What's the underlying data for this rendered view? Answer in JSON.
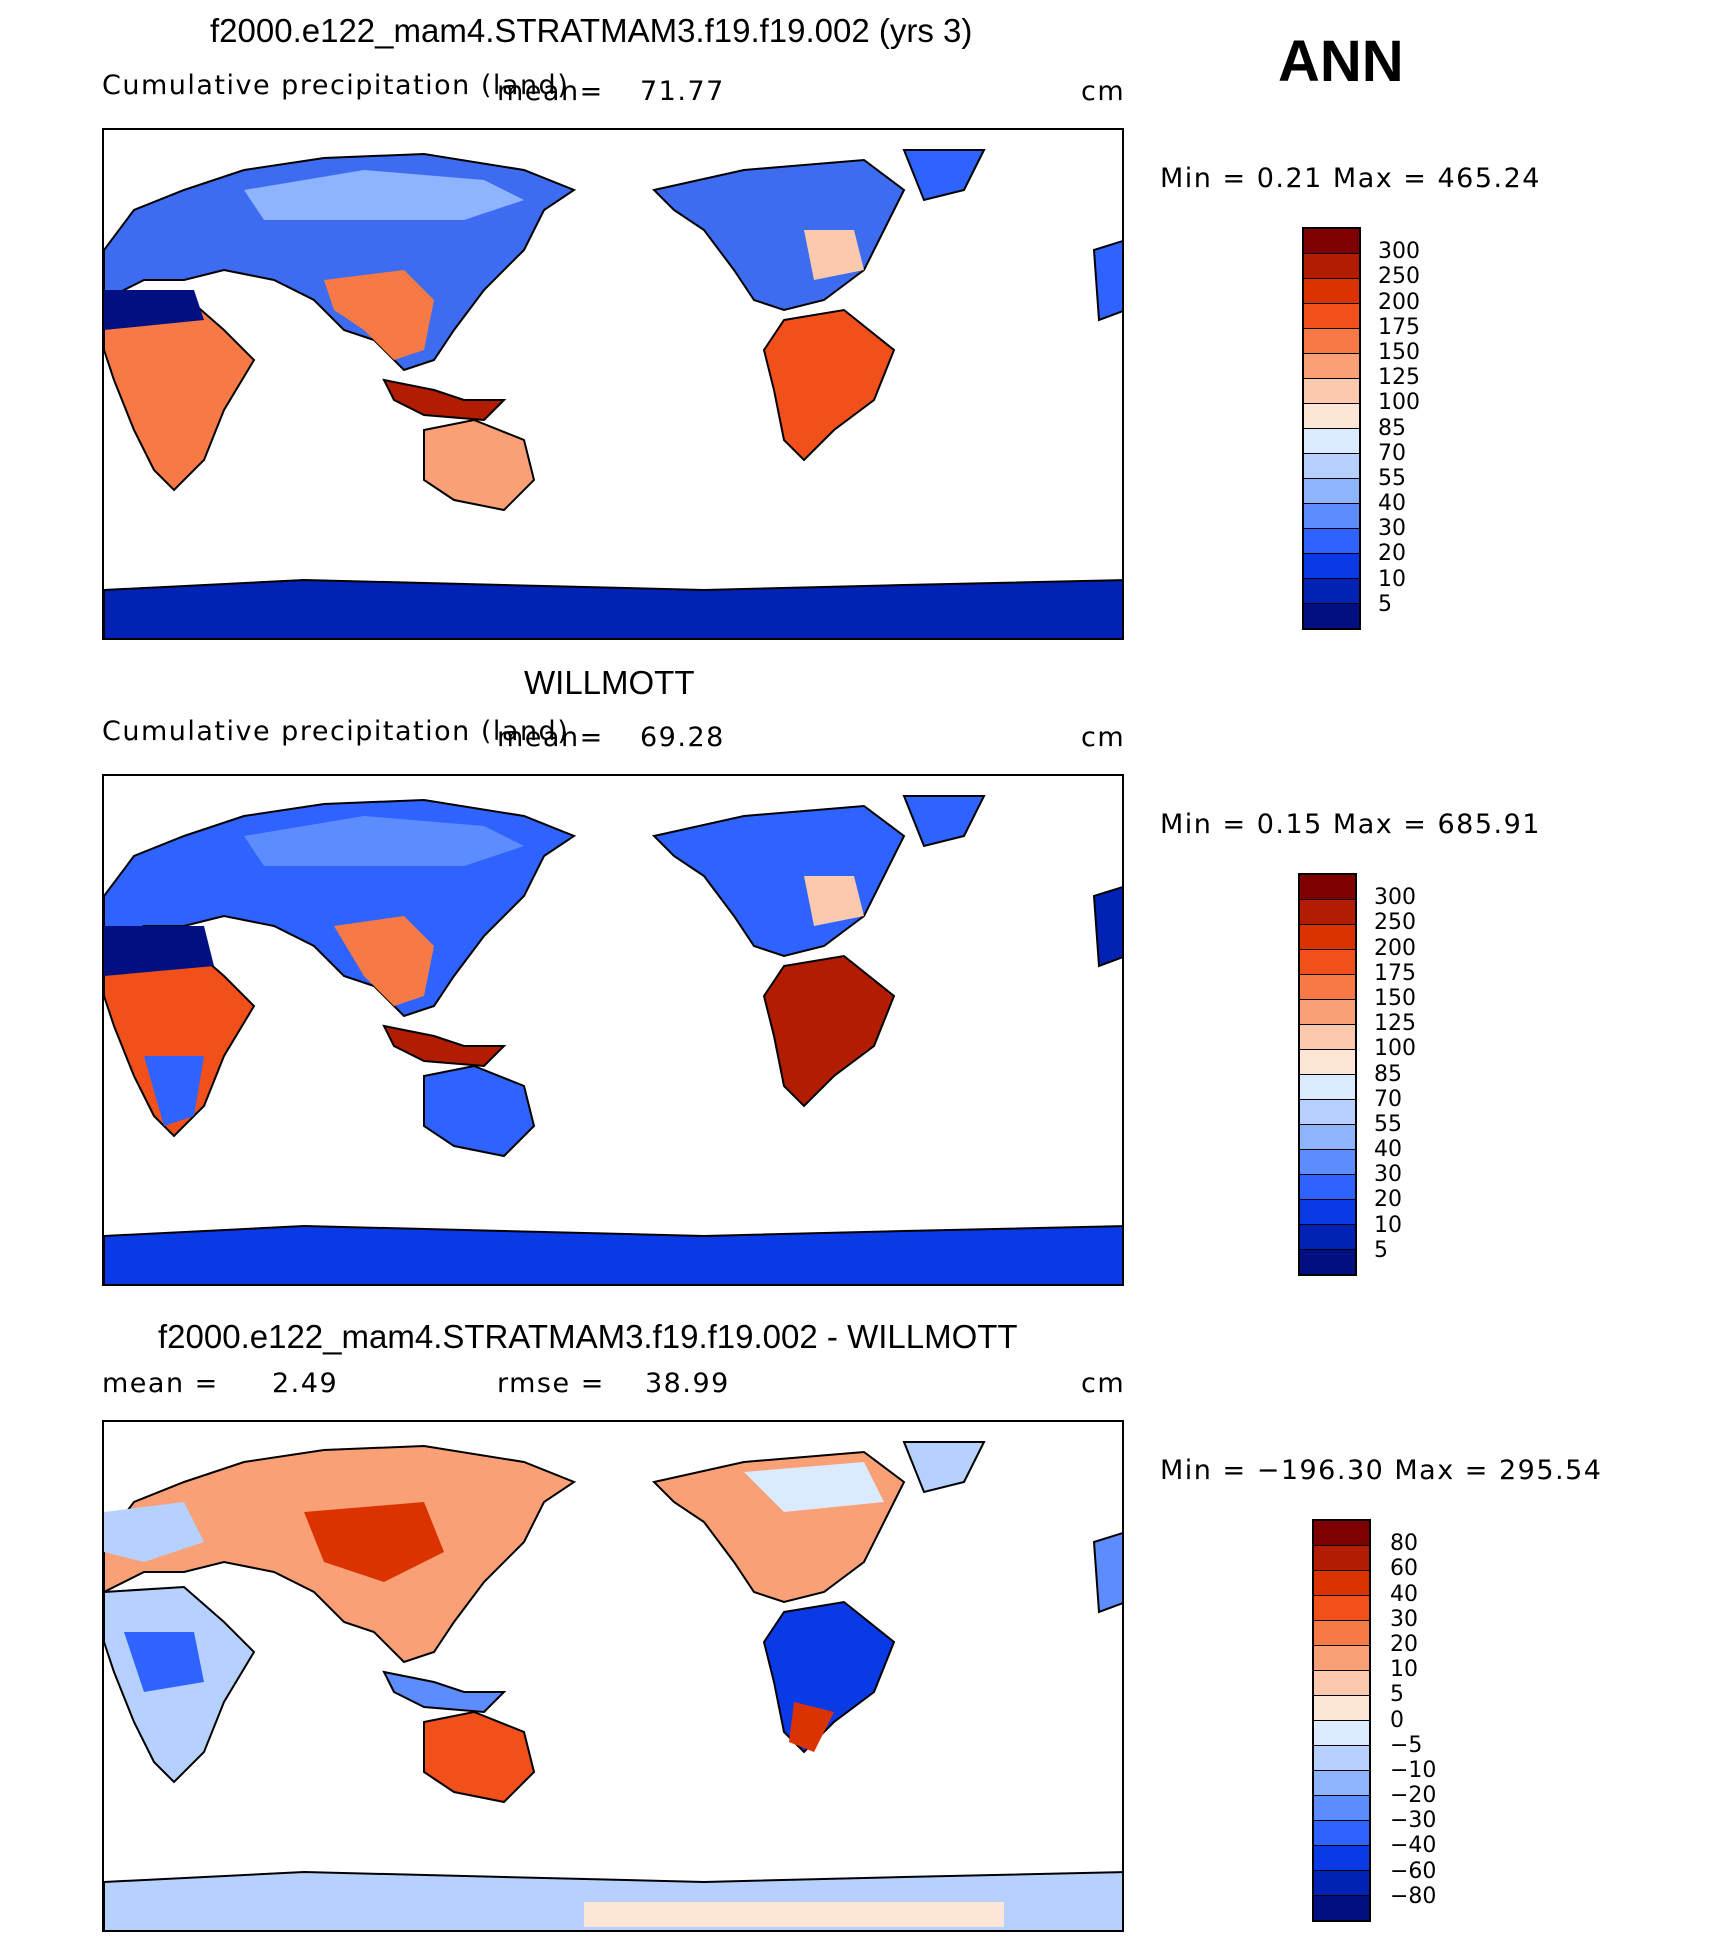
{
  "season": "ANN",
  "panels": [
    {
      "title": "f2000.e122_mam4.STRATMAM3.f19.f19.002 (yrs 3)",
      "left_label": "Cumulative precipitation (land)",
      "mean_label": "mean=",
      "mean_value": "71.77",
      "units": "cm",
      "minmax": "Min  =    0.21  Max  =  465.24",
      "colorbar": {
        "colors": [
          "#7f0000",
          "#b21c00",
          "#da3300",
          "#f2501b",
          "#f77a46",
          "#f9a077",
          "#fbc9ae",
          "#fde6d6",
          "#dbeaff",
          "#b6d1ff",
          "#8fb4ff",
          "#5d8cff",
          "#2e63ff",
          "#0a3ae6",
          "#0022b5",
          "#001080"
        ],
        "labels": [
          "300",
          "250",
          "200",
          "175",
          "150",
          "125",
          "100",
          "85",
          "70",
          "55",
          "40",
          "30",
          "20",
          "10",
          "5"
        ]
      }
    },
    {
      "title": "WILLMOTT",
      "left_label": "Cumulative precipitation (land)",
      "mean_label": "mean=",
      "mean_value": "69.28",
      "units": "cm",
      "minmax": "Min  =    0.15  Max  =  685.91",
      "colorbar": {
        "colors": [
          "#7f0000",
          "#b21c00",
          "#da3300",
          "#f2501b",
          "#f77a46",
          "#f9a077",
          "#fbc9ae",
          "#fde6d6",
          "#dbeaff",
          "#b6d1ff",
          "#8fb4ff",
          "#5d8cff",
          "#2e63ff",
          "#0a3ae6",
          "#0022b5",
          "#001080"
        ],
        "labels": [
          "300",
          "250",
          "200",
          "175",
          "150",
          "125",
          "100",
          "85",
          "70",
          "55",
          "40",
          "30",
          "20",
          "10",
          "5"
        ]
      }
    },
    {
      "title": "f2000.e122_mam4.STRATMAM3.f19.f19.002 - WILLMOTT",
      "left_label": "mean  =",
      "mean_value": "2.49",
      "rmse_label": "rmse  =",
      "rmse_value": "38.99",
      "units": "cm",
      "minmax": "Min  = −196.30  Max  =  295.54",
      "colorbar": {
        "colors": [
          "#7f0000",
          "#b21c00",
          "#da3300",
          "#f2501b",
          "#f77a46",
          "#f9a077",
          "#fbc9ae",
          "#fde6d6",
          "#dbeaff",
          "#b6d1ff",
          "#8fb4ff",
          "#5d8cff",
          "#2e63ff",
          "#0a3ae6",
          "#0022b5",
          "#001080"
        ],
        "labels": [
          "80",
          "60",
          "40",
          "30",
          "20",
          "10",
          "5",
          "0",
          "−5",
          "−10",
          "−20",
          "−30",
          "−40",
          "−60",
          "−80"
        ]
      }
    }
  ]
}
